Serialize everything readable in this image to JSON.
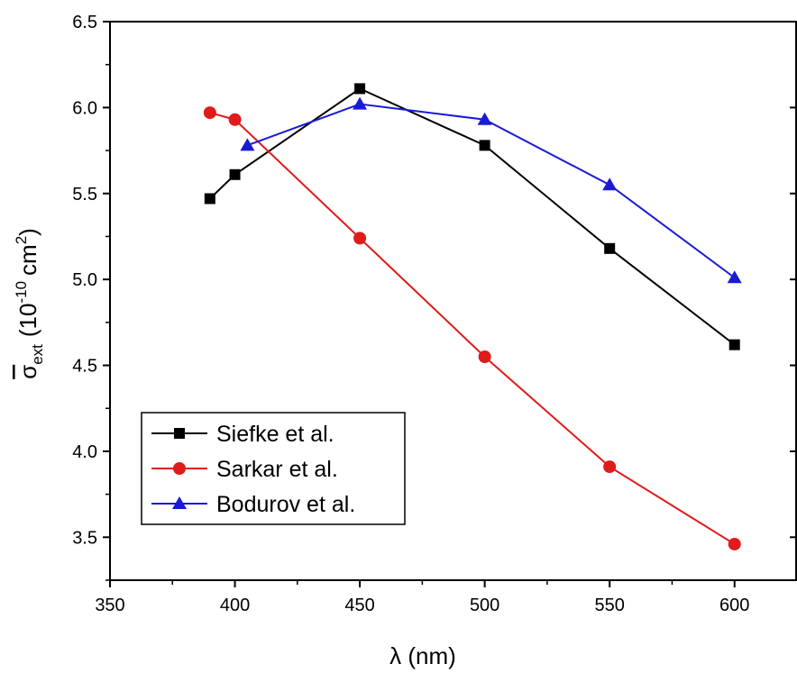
{
  "chart_data": {
    "type": "line",
    "xlabel": "λ (nm)",
    "ylabel": {
      "symbol": "σ",
      "subscript": "ext",
      "open": "(10",
      "exponent": "-10",
      "unit": "cm",
      "unit_power": "2",
      "close": ")"
    },
    "xlim": [
      350,
      625
    ],
    "ylim": [
      3.25,
      6.5
    ],
    "xticks": [
      "350",
      "400",
      "450",
      "500",
      "550",
      "600"
    ],
    "yticks": [
      "3.5",
      "4.0",
      "4.5",
      "5.0",
      "5.5",
      "6.0",
      "6.5"
    ],
    "series": [
      {
        "name": "Siefke et al.",
        "color": "#000000",
        "marker": "square",
        "x": [
          390,
          400,
          450,
          500,
          550,
          600
        ],
        "y": [
          5.47,
          5.61,
          6.11,
          5.78,
          5.18,
          4.62
        ]
      },
      {
        "name": "Sarkar et al.",
        "color": "#e11a1a",
        "marker": "circle",
        "x": [
          390,
          400,
          450,
          500,
          550,
          600
        ],
        "y": [
          5.97,
          5.93,
          5.24,
          4.55,
          3.91,
          3.46
        ]
      },
      {
        "name": "Bodurov et al.",
        "color": "#1a1ad6",
        "marker": "triangle",
        "x": [
          405,
          450,
          500,
          550,
          600
        ],
        "y": [
          5.78,
          6.02,
          5.93,
          5.55,
          5.01
        ]
      }
    ],
    "legend_position": "bottom-left",
    "grid": false
  }
}
